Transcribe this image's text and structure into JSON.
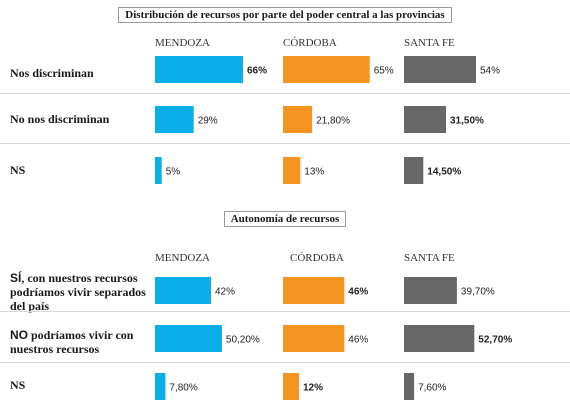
{
  "chart_data": [
    {
      "type": "bar",
      "title": "Distribución de recursos por parte del poder central a las provincias",
      "columns": [
        "MENDOZA",
        "CÓRDOBA",
        "SANTA FE"
      ],
      "colors": [
        "#0aaee8",
        "#f59421",
        "#676767"
      ],
      "categories": [
        "Nos discriminan",
        "No nos discriminan",
        "NS"
      ],
      "series": [
        {
          "name": "MENDOZA",
          "values": [
            66,
            29,
            5
          ],
          "labels": [
            "66%",
            "29%",
            "5%"
          ],
          "bold": [
            true,
            false,
            false
          ]
        },
        {
          "name": "CÓRDOBA",
          "values": [
            65,
            21.8,
            13
          ],
          "labels": [
            "65%",
            "21,80%",
            "13%"
          ],
          "bold": [
            false,
            false,
            false
          ]
        },
        {
          "name": "SANTA FE",
          "values": [
            54,
            31.5,
            14.5
          ],
          "labels": [
            "54%",
            "31,50%",
            "14,50%"
          ],
          "bold": [
            false,
            true,
            true
          ]
        }
      ]
    },
    {
      "type": "bar",
      "title": "Autonomía de recursos",
      "columns": [
        "MENDOZA",
        "CÓRDOBA",
        "SANTA FE"
      ],
      "colors": [
        "#0aaee8",
        "#f59421",
        "#676767"
      ],
      "categories": [
        {
          "lead": "SÍ",
          "rest": ", con nuestros recursos podríamos vivir separados del país"
        },
        {
          "lead": "NO",
          "rest": " podríamos vivir con nuestros recursos"
        },
        {
          "lead": "",
          "rest": "NS"
        }
      ],
      "series": [
        {
          "name": "MENDOZA",
          "values": [
            42,
            50.2,
            7.8
          ],
          "labels": [
            "42%",
            "50,20%",
            "7,80%"
          ],
          "bold": [
            false,
            false,
            false
          ]
        },
        {
          "name": "CÓRDOBA",
          "values": [
            46,
            46,
            12
          ],
          "labels": [
            "46%",
            "46%",
            "12%"
          ],
          "bold": [
            true,
            false,
            true
          ]
        },
        {
          "name": "SANTA FE",
          "values": [
            39.7,
            52.7,
            7.6
          ],
          "labels": [
            "39,70%",
            "52,70%",
            "7,60%"
          ],
          "bold": [
            false,
            true,
            false
          ]
        }
      ]
    }
  ]
}
